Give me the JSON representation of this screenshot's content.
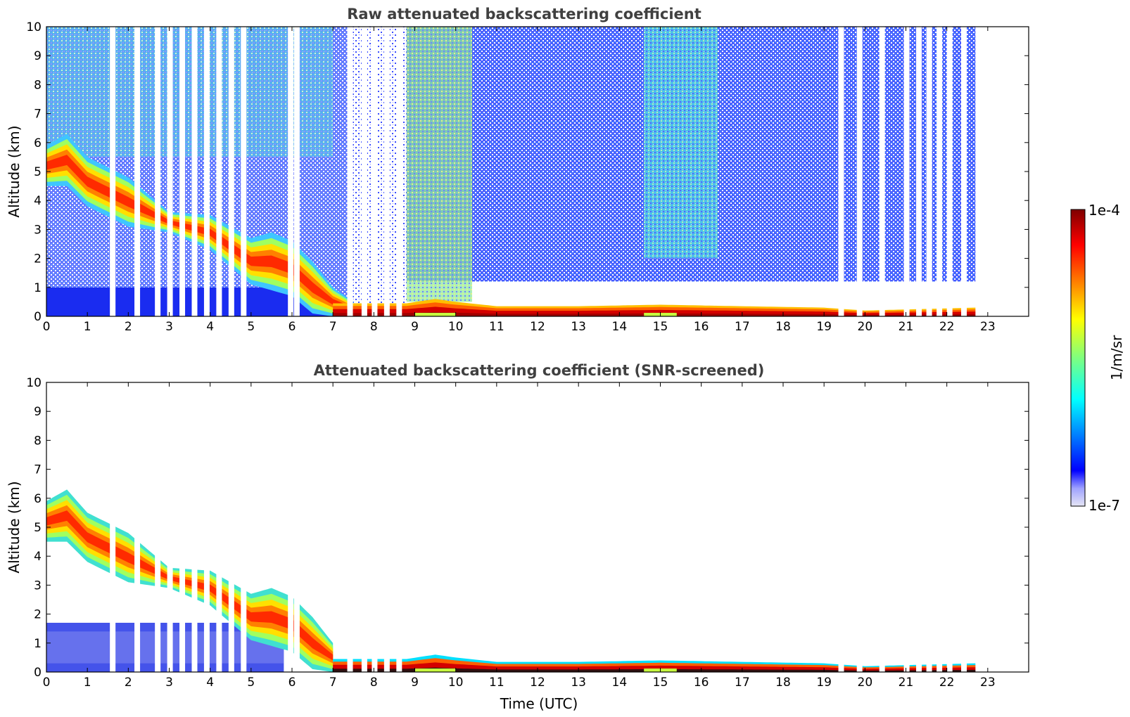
{
  "chart_data": [
    {
      "type": "heatmap",
      "title": "Raw attenuated backscattering coefficient",
      "xlabel": "",
      "ylabel": "Altitude (km)",
      "xlim": [
        0,
        24
      ],
      "ylim": [
        0,
        10
      ],
      "xticks": [
        "0",
        "1",
        "2",
        "3",
        "4",
        "5",
        "6",
        "7",
        "8",
        "9",
        "10",
        "11",
        "12",
        "13",
        "14",
        "15",
        "16",
        "17",
        "18",
        "19",
        "20",
        "21",
        "22",
        "23"
      ],
      "yticks": [
        "0",
        "1",
        "2",
        "3",
        "4",
        "5",
        "6",
        "7",
        "8",
        "9",
        "10"
      ],
      "colormap": "jet",
      "data_end_hour": 22.7,
      "features": {
        "descending_layer_top_km": [
          [
            0,
            5.9
          ],
          [
            0.5,
            6.3
          ],
          [
            1,
            5.5
          ],
          [
            2,
            4.8
          ],
          [
            3,
            3.6
          ],
          [
            4,
            3.5
          ],
          [
            5,
            2.7
          ],
          [
            5.5,
            2.9
          ],
          [
            6,
            2.6
          ],
          [
            6.5,
            1.9
          ],
          [
            7,
            1.0
          ],
          [
            7.5,
            0.5
          ]
        ],
        "descending_layer_base_km": [
          [
            0,
            4.5
          ],
          [
            0.5,
            4.5
          ],
          [
            1,
            3.8
          ],
          [
            2,
            3.1
          ],
          [
            3,
            2.9
          ],
          [
            4,
            2.3
          ],
          [
            5,
            1.1
          ],
          [
            6,
            0.7
          ],
          [
            6.5,
            0.1
          ],
          [
            7,
            0.0
          ]
        ],
        "low_layer_top_km": [
          [
            0,
            0.45
          ],
          [
            8.8,
            0.45
          ],
          [
            9.5,
            0.6
          ],
          [
            10,
            0.5
          ],
          [
            11,
            0.35
          ],
          [
            13,
            0.35
          ],
          [
            15,
            0.4
          ],
          [
            17,
            0.35
          ],
          [
            19,
            0.3
          ],
          [
            20,
            0.2
          ],
          [
            22.7,
            0.3
          ]
        ],
        "noisy_background_intervals_h": [
          [
            0,
            7.2
          ],
          [
            8.8,
            10.4
          ],
          [
            14.6,
            16.4
          ]
        ],
        "data_gaps_h": [
          1.55,
          2.15,
          2.65,
          2.95,
          3.25,
          3.55,
          3.85,
          4.15,
          4.45,
          4.75,
          5.9,
          6.05,
          7.35,
          7.7,
          7.95,
          8.25,
          8.55,
          19.35,
          19.8,
          20.35,
          20.95,
          21.25,
          21.5,
          21.75,
          22.0,
          22.35
        ]
      }
    },
    {
      "type": "heatmap",
      "title": "Attenuated backscattering coefficient (SNR-screened)",
      "xlabel": "Time (UTC)",
      "ylabel": "Altitude (km)",
      "xlim": [
        0,
        24
      ],
      "ylim": [
        0,
        10
      ],
      "xticks": [
        "0",
        "1",
        "2",
        "3",
        "4",
        "5",
        "6",
        "7",
        "8",
        "9",
        "10",
        "11",
        "12",
        "13",
        "14",
        "15",
        "16",
        "17",
        "18",
        "19",
        "20",
        "21",
        "22",
        "23"
      ],
      "yticks": [
        "0",
        "1",
        "2",
        "3",
        "4",
        "5",
        "6",
        "7",
        "8",
        "9",
        "10"
      ],
      "colormap": "jet",
      "data_end_hour": 22.7
    }
  ],
  "colorbar": {
    "max_label": "1e-4",
    "min_label": "1e-7",
    "unit_label": "1/m/sr"
  }
}
